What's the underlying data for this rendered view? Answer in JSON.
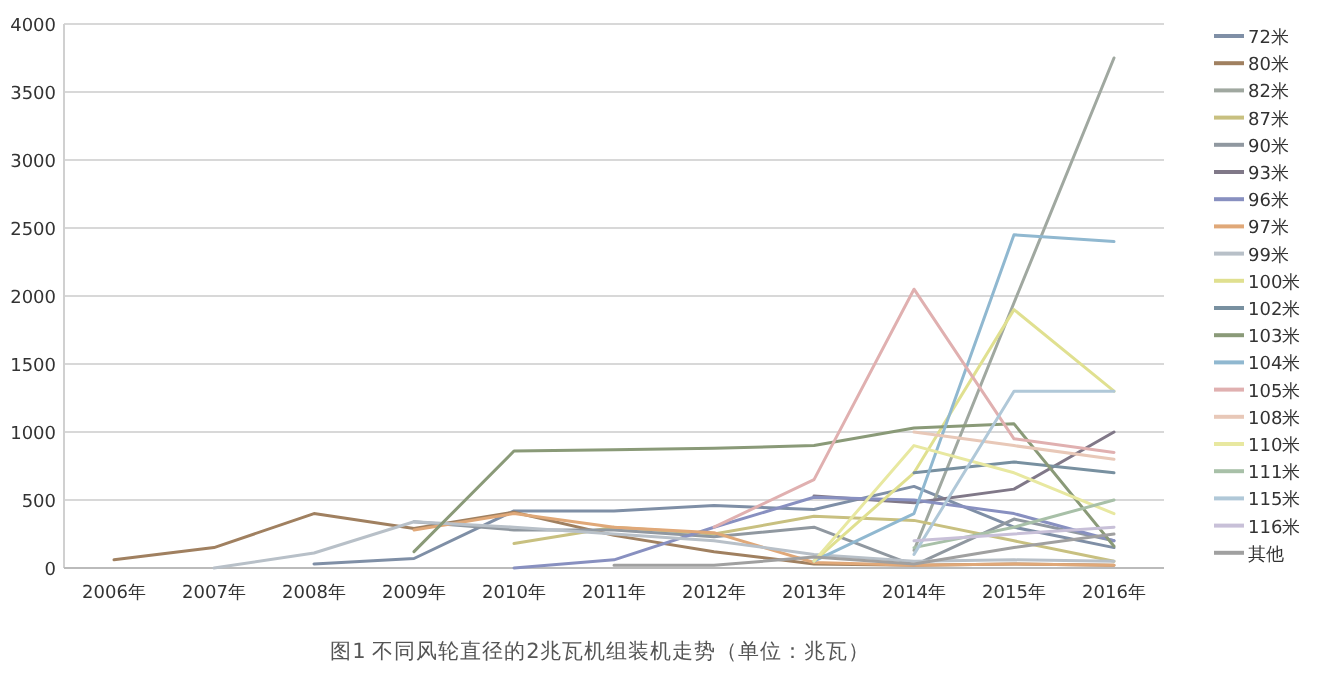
{
  "chart_data": {
    "type": "line",
    "title": "图1 不同风轮直径的2兆瓦机组装机走势（单位：兆瓦）",
    "categories": [
      "2006年",
      "2007年",
      "2008年",
      "2009年",
      "2010年",
      "2011年",
      "2012年",
      "2013年",
      "2014年",
      "2015年",
      "2016年"
    ],
    "ylim": [
      0,
      4000
    ],
    "yticks": [
      0,
      500,
      1000,
      1500,
      2000,
      2500,
      3000,
      3500,
      4000
    ],
    "grid": "y",
    "legend": "right",
    "series": [
      {
        "name": "72米",
        "color": "#7f8fa6",
        "values": [
          null,
          null,
          30,
          70,
          420,
          420,
          460,
          430,
          600,
          300,
          150
        ]
      },
      {
        "name": "80米",
        "color": "#a08060",
        "values": [
          60,
          150,
          400,
          290,
          410,
          240,
          120,
          30,
          20,
          30,
          20
        ]
      },
      {
        "name": "82米",
        "color": "#a0a8a0",
        "values": [
          null,
          null,
          null,
          null,
          null,
          null,
          null,
          null,
          130,
          1950,
          3750
        ]
      },
      {
        "name": "87米",
        "color": "#c8c080",
        "values": [
          null,
          null,
          null,
          null,
          180,
          300,
          250,
          380,
          350,
          200,
          50
        ]
      },
      {
        "name": "90米",
        "color": "#9098a0",
        "values": [
          null,
          null,
          null,
          340,
          280,
          280,
          230,
          300,
          20,
          360,
          200
        ]
      },
      {
        "name": "93米",
        "color": "#807888",
        "values": [
          null,
          null,
          null,
          null,
          null,
          null,
          null,
          530,
          480,
          580,
          1000
        ]
      },
      {
        "name": "96米",
        "color": "#8890c0",
        "values": [
          null,
          null,
          null,
          null,
          0,
          60,
          300,
          520,
          500,
          400,
          200
        ]
      },
      {
        "name": "97米",
        "color": "#e0a878",
        "values": [
          null,
          null,
          null,
          280,
          400,
          300,
          260,
          40,
          20,
          30,
          20
        ]
      },
      {
        "name": "99米",
        "color": "#b8c0c8",
        "values": [
          null,
          0,
          110,
          340,
          300,
          250,
          200,
          100,
          50,
          60,
          50
        ]
      },
      {
        "name": "100米",
        "color": "#e0e090",
        "values": [
          null,
          null,
          null,
          null,
          null,
          null,
          null,
          50,
          700,
          1900,
          1300
        ]
      },
      {
        "name": "102米",
        "color": "#7890a0",
        "values": [
          null,
          null,
          null,
          null,
          null,
          null,
          null,
          null,
          700,
          780,
          700
        ]
      },
      {
        "name": "103米",
        "color": "#8a9a78",
        "values": [
          null,
          null,
          null,
          120,
          860,
          870,
          880,
          900,
          1030,
          1060,
          160
        ]
      },
      {
        "name": "104米",
        "color": "#90b8d0",
        "values": [
          null,
          null,
          null,
          null,
          null,
          null,
          null,
          50,
          400,
          2450,
          2400
        ]
      },
      {
        "name": "105米",
        "color": "#e0b0b0",
        "values": [
          null,
          null,
          null,
          null,
          null,
          null,
          300,
          650,
          2050,
          950,
          850
        ]
      },
      {
        "name": "108米",
        "color": "#e8c8b8",
        "values": [
          null,
          null,
          null,
          null,
          null,
          null,
          null,
          null,
          1000,
          900,
          800
        ]
      },
      {
        "name": "110米",
        "color": "#e8e8a0",
        "values": [
          null,
          null,
          null,
          null,
          null,
          null,
          null,
          50,
          900,
          700,
          400
        ]
      },
      {
        "name": "111米",
        "color": "#a8c0a8",
        "values": [
          null,
          null,
          null,
          null,
          null,
          null,
          null,
          null,
          150,
          300,
          500
        ]
      },
      {
        "name": "115米",
        "color": "#b0c8d8",
        "values": [
          null,
          null,
          null,
          null,
          null,
          null,
          null,
          null,
          100,
          1300,
          1300
        ]
      },
      {
        "name": "116米",
        "color": "#c8c0d8",
        "values": [
          null,
          null,
          null,
          null,
          null,
          null,
          null,
          null,
          200,
          250,
          300
        ]
      },
      {
        "name": "其他",
        "color": "#a0a0a0",
        "values": [
          null,
          null,
          null,
          null,
          null,
          20,
          20,
          80,
          30,
          150,
          250
        ]
      }
    ]
  }
}
